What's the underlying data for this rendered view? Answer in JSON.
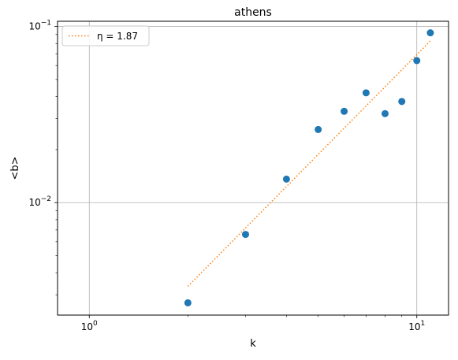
{
  "chart_data": {
    "type": "scatter",
    "title": "athens",
    "xlabel": "k",
    "ylabel": "<b>",
    "xscale": "log",
    "yscale": "log",
    "xlim": [
      0.8,
      12.5
    ],
    "ylim": [
      0.0023,
      0.107
    ],
    "grid": true,
    "legend_position": "top-left",
    "x_ticks": [
      {
        "value": 1,
        "base": "10",
        "exp": "0"
      },
      {
        "value": 10,
        "base": "10",
        "exp": "1"
      }
    ],
    "y_ticks": [
      {
        "value": 0.01,
        "base": "10",
        "exp": "−2"
      },
      {
        "value": 0.1,
        "base": "10",
        "exp": "−1"
      }
    ],
    "series": [
      {
        "kind": "points",
        "color": "#1f77b4",
        "x": [
          2,
          3,
          4,
          5,
          6,
          7,
          8,
          9,
          10,
          11
        ],
        "y": [
          0.0027,
          0.0066,
          0.0136,
          0.026,
          0.033,
          0.042,
          0.032,
          0.0375,
          0.064,
          0.092
        ]
      },
      {
        "kind": "fit-line",
        "name": "η = 1.87",
        "color": "#ff7f0e",
        "style": "dotted",
        "x": [
          2,
          11
        ],
        "y": [
          0.00335,
          0.0828
        ]
      }
    ]
  }
}
